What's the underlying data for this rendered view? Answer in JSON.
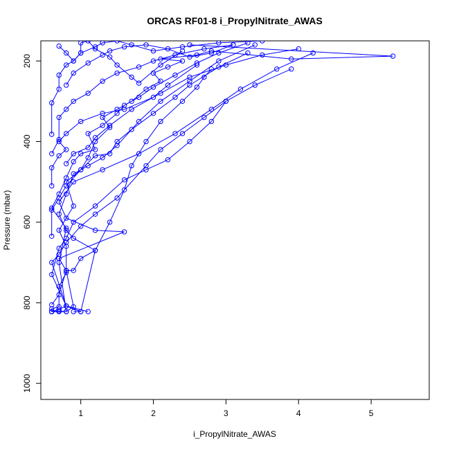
{
  "chart_data": {
    "type": "line",
    "title": "ORCAS RF01-8 i_PropylNitrate_AWAS",
    "xlabel": "i_PropylNitrate_AWAS",
    "ylabel": "Pressure (mbar)",
    "xlim": [
      0.45,
      5.8
    ],
    "ylim": [
      1040,
      150
    ],
    "x_ticks": [
      1,
      2,
      3,
      4,
      5
    ],
    "y_ticks": [
      200,
      400,
      600,
      800,
      1000
    ],
    "series_color": "#0000ff",
    "markers": "open-circle",
    "series": [
      {
        "x": [
          0.6,
          0.6,
          0.7,
          0.7,
          0.8,
          0.8,
          0.7,
          0.9,
          0.8,
          1.0,
          1.1,
          1.2,
          1.4,
          1.3,
          1.5,
          1.7,
          1.9,
          2.1,
          2.0,
          2.2,
          2.4,
          2.1,
          2.6,
          2.8,
          3.9,
          5.3,
          2.5
        ],
        "y": [
          822,
          815,
          810,
          760,
          725,
          660,
          620,
          560,
          500,
          470,
          440,
          400,
          365,
          340,
          320,
          300,
          270,
          250,
          230,
          215,
          200,
          195,
          185,
          175,
          195,
          188,
          160
        ]
      },
      {
        "x": [
          0.6,
          0.7,
          0.8,
          0.7,
          0.8,
          0.6,
          0.7,
          0.8,
          0.9,
          1.0,
          1.2,
          1.1,
          1.3,
          1.5,
          1.6,
          1.8,
          2.0,
          2.3,
          2.6,
          2.9,
          3.3
        ],
        "y": [
          822,
          820,
          822,
          700,
          615,
          565,
          530,
          490,
          450,
          430,
          420,
          380,
          360,
          330,
          310,
          290,
          265,
          235,
          205,
          180,
          155
        ]
      },
      {
        "x": [
          0.6,
          0.7,
          0.8,
          1.0,
          1.2,
          0.9,
          0.8,
          0.7,
          0.8,
          0.9,
          1.1,
          1.3,
          1.5,
          1.8,
          2.1,
          2.5,
          2.9,
          3.4
        ],
        "y": [
          822,
          816,
          808,
          822,
          670,
          640,
          620,
          580,
          530,
          480,
          460,
          440,
          410,
          350,
          300,
          250,
          200,
          160
        ]
      },
      {
        "x": [
          0.6,
          0.7,
          0.8,
          0.9,
          0.8,
          0.7,
          1.6,
          1.2,
          0.8,
          0.7,
          0.9,
          1.3,
          1.8,
          2.3,
          2.8,
          3.2,
          3.7,
          4.2
        ],
        "y": [
          822,
          822,
          822,
          810,
          720,
          690,
          624,
          620,
          590,
          550,
          500,
          470,
          430,
          380,
          320,
          270,
          220,
          180
        ]
      },
      {
        "x": [
          0.9,
          1.0,
          0.8,
          0.6,
          0.7,
          0.8,
          0.9,
          1.2,
          1.6,
          1.9,
          2.2,
          2.5,
          2.8,
          3.0
        ],
        "y": [
          822,
          822,
          808,
          730,
          665,
          640,
          600,
          560,
          495,
          470,
          445,
          400,
          350,
          300
        ]
      },
      {
        "x": [
          1.1,
          0.8,
          0.6,
          0.7,
          0.8,
          1.0,
          1.2,
          1.5,
          1.9,
          2.1,
          2.4,
          2.7,
          3.0,
          3.4,
          3.9
        ],
        "y": [
          822,
          808,
          700,
          680,
          650,
          610,
          580,
          540,
          460,
          420,
          380,
          340,
          300,
          260,
          220
        ]
      },
      {
        "x": [
          0.6,
          0.7,
          0.8,
          0.9,
          1.0,
          1.2,
          1.4,
          1.6,
          1.7,
          1.9,
          2.1,
          2.4,
          2.6,
          2.7,
          2.8
        ],
        "y": [
          805,
          780,
          720,
          720,
          690,
          670,
          600,
          520,
          460,
          400,
          350,
          300,
          265,
          240,
          220
        ]
      },
      {
        "x": [
          0.6,
          0.6,
          0.7,
          0.8,
          1.0,
          1.2,
          1.4,
          1.5,
          1.7,
          2.0,
          2.3,
          2.5,
          2.9,
          3.3
        ],
        "y": [
          635,
          570,
          540,
          510,
          470,
          435,
          430,
          400,
          370,
          330,
          290,
          260,
          215,
          180
        ]
      },
      {
        "x": [
          0.6,
          0.6,
          0.7,
          0.8,
          0.7,
          0.8,
          1.0,
          1.3,
          1.6,
          2.0,
          2.2,
          2.6
        ],
        "y": [
          510,
          465,
          435,
          420,
          400,
          380,
          350,
          330,
          320,
          290,
          260,
          210
        ]
      },
      {
        "x": [
          0.6,
          0.7,
          0.7,
          0.8,
          0.9,
          1.1,
          1.3,
          1.5,
          1.8,
          2.0,
          2.3,
          2.7,
          3.1
        ],
        "y": [
          430,
          395,
          340,
          320,
          300,
          280,
          250,
          230,
          215,
          200,
          185,
          170,
          160
        ]
      },
      {
        "x": [
          0.6,
          0.6,
          0.7,
          0.7,
          0.8,
          0.9,
          1.0,
          1.2,
          1.3,
          1.5,
          1.7,
          2.0,
          2.4,
          2.9,
          3.5
        ],
        "y": [
          382,
          304,
          270,
          235,
          210,
          200,
          180,
          165,
          155,
          150,
          160,
          175,
          165,
          155,
          150
        ]
      },
      {
        "x": [
          0.7,
          0.8,
          0.9,
          1.0,
          1.0,
          1.1,
          1.2,
          1.4,
          1.5,
          1.7,
          1.8,
          2.1,
          2.4
        ],
        "y": [
          163,
          180,
          200,
          180,
          155,
          150,
          170,
          190,
          210,
          240,
          255,
          210,
          175
        ]
      },
      {
        "x": [
          0.8,
          0.9,
          1.1,
          1.3,
          1.4,
          1.6,
          1.9,
          2.2,
          2.5,
          2.8,
          3.1
        ],
        "y": [
          260,
          230,
          205,
          185,
          175,
          165,
          160,
          170,
          190,
          180,
          160
        ]
      },
      {
        "x": [
          0.8,
          0.9,
          1.1,
          1.2,
          1.4,
          1.7,
          2.1,
          2.5,
          3.0,
          3.5,
          4.0
        ],
        "y": [
          455,
          430,
          415,
          390,
          360,
          320,
          280,
          240,
          210,
          185,
          170
        ]
      }
    ]
  }
}
